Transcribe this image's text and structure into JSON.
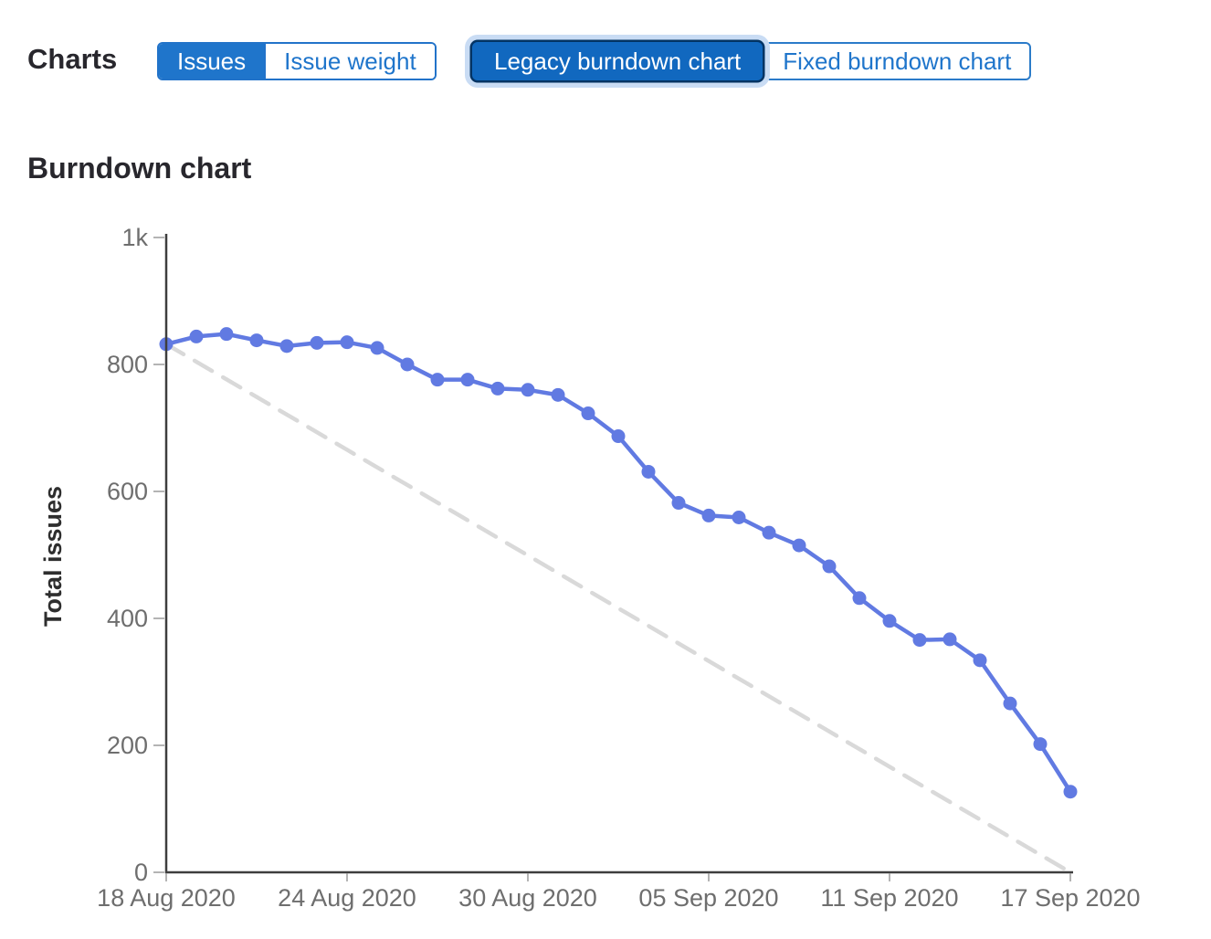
{
  "header": {
    "charts_label": "Charts",
    "metric_toggle": {
      "options": [
        {
          "label": "Issues",
          "selected": true
        },
        {
          "label": "Issue weight",
          "selected": false
        }
      ]
    },
    "chart_type_toggle": {
      "options": [
        {
          "label": "Legacy burndown chart",
          "selected": true,
          "focused": true
        },
        {
          "label": "Fixed burndown chart",
          "selected": false
        }
      ]
    }
  },
  "section_title": "Burndown chart",
  "colors": {
    "primary_blue": "#1f75cb",
    "selected_button_bg": "#1168bf",
    "selected_button_ring": "#033464",
    "focus_halo": "#c9dcf4",
    "series_line": "#617ae2",
    "guideline": "#d9d9d9",
    "axis_line": "#3e3e3e",
    "tick_mark": "#b4b4b4",
    "tick_text": "#6e6e6e",
    "heading_text": "#28272d"
  },
  "chart_data": {
    "type": "line",
    "title": "Burndown chart",
    "xlabel": "",
    "ylabel": "Total issues",
    "ylim": [
      0,
      1000
    ],
    "grid": false,
    "legend": "none",
    "y_ticks": [
      {
        "value": 0,
        "label": "0"
      },
      {
        "value": 200,
        "label": "200"
      },
      {
        "value": 400,
        "label": "400"
      },
      {
        "value": 600,
        "label": "600"
      },
      {
        "value": 800,
        "label": "800"
      },
      {
        "value": 1000,
        "label": "1k"
      }
    ],
    "x_ticks": [
      {
        "day_index": 0,
        "label": "18 Aug 2020"
      },
      {
        "day_index": 6,
        "label": "24 Aug 2020"
      },
      {
        "day_index": 12,
        "label": "30 Aug 2020"
      },
      {
        "day_index": 18,
        "label": "05 Sep 2020"
      },
      {
        "day_index": 24,
        "label": "11 Sep 2020"
      },
      {
        "day_index": 30,
        "label": "17 Sep 2020"
      }
    ],
    "series": [
      {
        "name": "Open issues",
        "type": "line",
        "color": "#617ae2",
        "dates": [
          "2020-08-18",
          "2020-08-19",
          "2020-08-20",
          "2020-08-21",
          "2020-08-22",
          "2020-08-23",
          "2020-08-24",
          "2020-08-25",
          "2020-08-26",
          "2020-08-27",
          "2020-08-28",
          "2020-08-29",
          "2020-08-30",
          "2020-08-31",
          "2020-09-01",
          "2020-09-02",
          "2020-09-03",
          "2020-09-04",
          "2020-09-05",
          "2020-09-06",
          "2020-09-07",
          "2020-09-08",
          "2020-09-09",
          "2020-09-10",
          "2020-09-11",
          "2020-09-12",
          "2020-09-13",
          "2020-09-14",
          "2020-09-15",
          "2020-09-16",
          "2020-09-17"
        ],
        "values": [
          832,
          844,
          848,
          838,
          829,
          834,
          835,
          826,
          800,
          776,
          776,
          762,
          760,
          752,
          723,
          687,
          631,
          582,
          562,
          559,
          535,
          515,
          482,
          432,
          396,
          366,
          367,
          334,
          266,
          202,
          127
        ]
      },
      {
        "name": "Guideline",
        "type": "dashed_line",
        "color": "#d9d9d9",
        "points": [
          {
            "day_index": 0,
            "value": 832
          },
          {
            "day_index": 30,
            "value": 0
          }
        ]
      }
    ]
  }
}
